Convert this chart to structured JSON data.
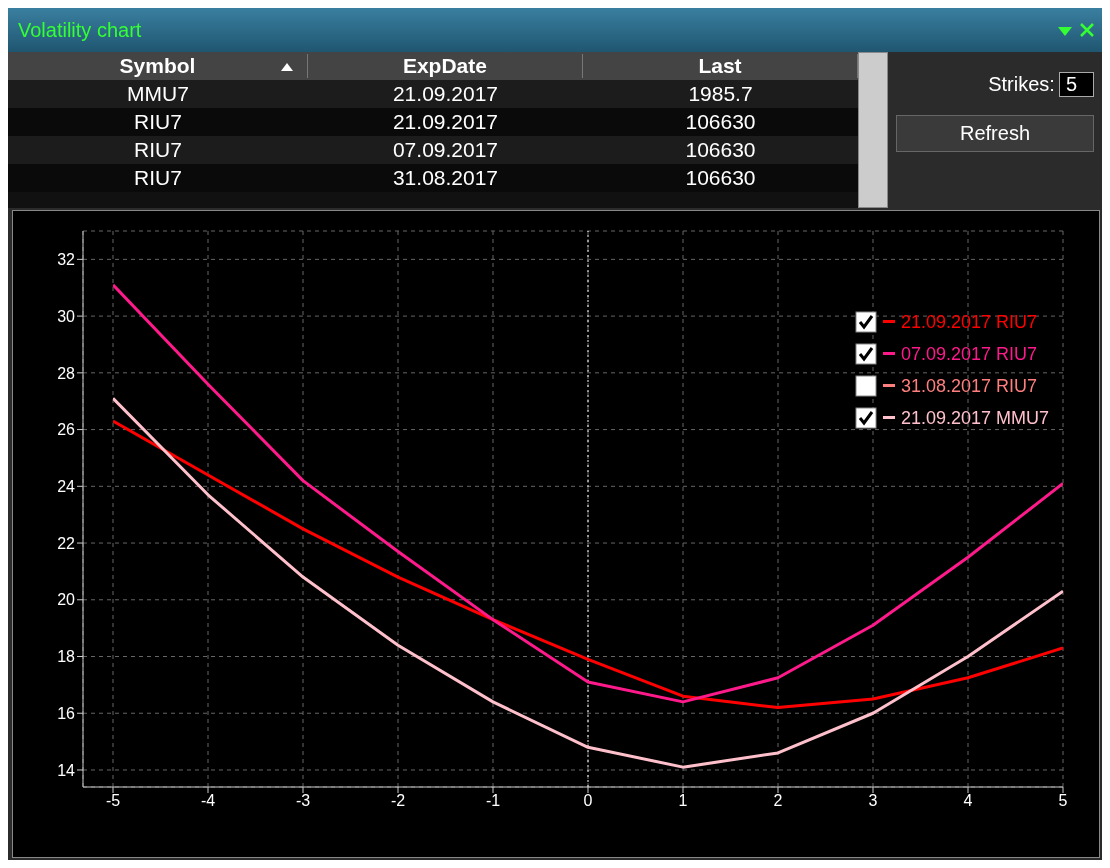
{
  "chart_data": {
    "type": "line",
    "title": "Volatility chart",
    "x": [
      -5,
      -4,
      -3,
      -2,
      -1,
      0,
      1,
      2,
      3,
      4,
      5
    ],
    "series": [
      {
        "name": "21.09.2017 RIU7",
        "color": "#ff0000",
        "values": [
          26.3,
          24.4,
          22.5,
          20.8,
          19.3,
          17.9,
          16.6,
          16.2,
          16.5,
          17.25,
          18.3
        ]
      },
      {
        "name": "07.09.2017 RIU7",
        "color": "#ff1a8c",
        "values": [
          31.1,
          27.6,
          24.2,
          21.7,
          19.3,
          17.1,
          16.4,
          17.25,
          19.1,
          21.5,
          24.1
        ]
      },
      {
        "name": "31.08.2017 RIU7",
        "color": "#ff7f7f",
        "values": [
          null,
          null,
          null,
          null,
          null,
          null,
          null,
          null,
          null,
          null,
          null
        ]
      },
      {
        "name": "21.09.2017 MMU7",
        "color": "#ffc0cb",
        "values": [
          27.1,
          23.7,
          20.8,
          18.4,
          16.4,
          14.8,
          14.1,
          14.6,
          16.0,
          18.0,
          20.3
        ]
      }
    ],
    "xlim": [
      -5,
      5
    ],
    "xticks": [
      -5,
      -4,
      -3,
      -2,
      -1,
      0,
      1,
      2,
      3,
      4,
      5
    ],
    "ylim": [
      13.4,
      33
    ],
    "yticks": [
      14,
      16,
      18,
      20,
      22,
      24,
      26,
      28,
      30,
      32
    ],
    "grid": true,
    "legend": "top right",
    "marker": "none",
    "line_style": "solid",
    "ref_lines": [
      {
        "axis": "x",
        "value": 0,
        "color": "#ffffff",
        "line_style": "dotted"
      }
    ],
    "annotations": [
      "Symbol",
      "ExpDate",
      "Last",
      "MMU7",
      "21.09.2017",
      "1985.7",
      "RIU7",
      "21.09.2017",
      "106630",
      "RIU7",
      "07.09.2017",
      "106630",
      "RIU7",
      "31.08.2017",
      "106630",
      "Strikes:",
      "5",
      "Refresh"
    ]
  }
}
